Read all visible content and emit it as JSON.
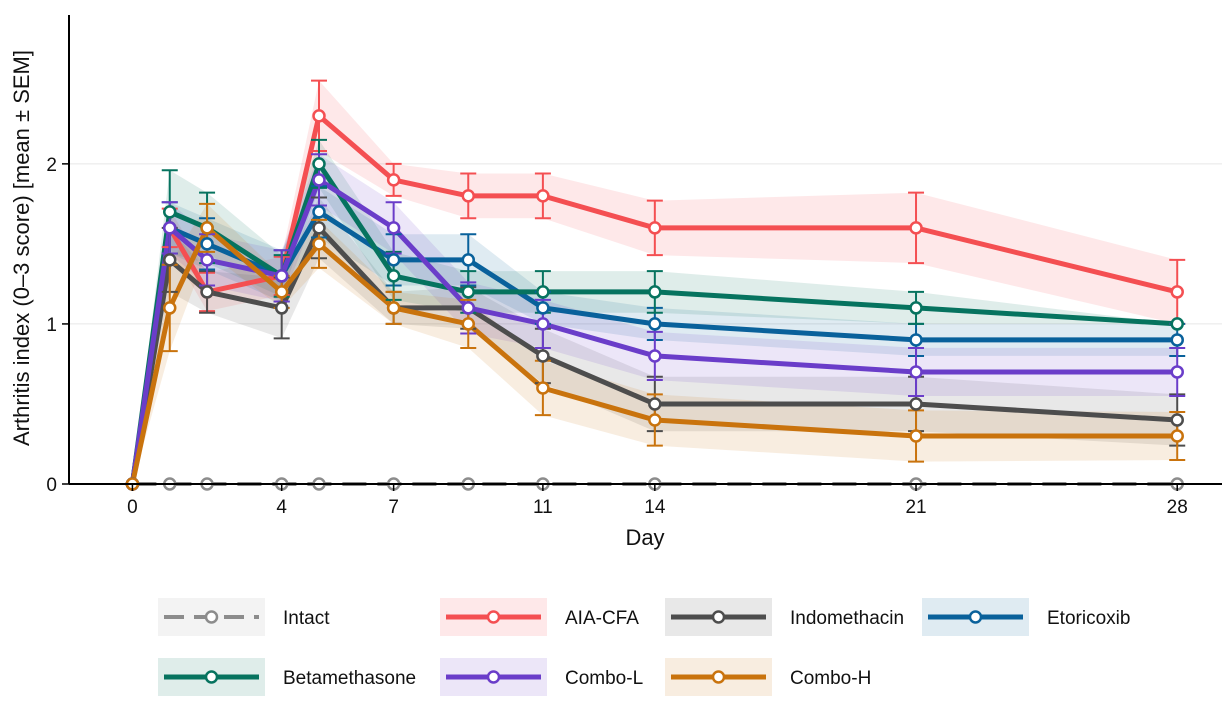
{
  "chart_data": {
    "type": "line",
    "xlabel": "Day",
    "ylabel": "Arthritis index (0–3 score) [mean ± SEM]",
    "xlim": [
      -1.7,
      29.2
    ],
    "ylim": [
      0,
      2.93
    ],
    "x_ticks": [
      0,
      4,
      7,
      11,
      14,
      21,
      28
    ],
    "y_ticks": [
      0,
      1,
      2
    ],
    "grid": "horizontal major lines",
    "legend_position": "bottom",
    "x": [
      0,
      1,
      2,
      4,
      5,
      7,
      9,
      11,
      14,
      21,
      28
    ],
    "series": [
      {
        "name": "Intact",
        "color": "#8c8c8c",
        "style": "dashed",
        "values": [
          0,
          0,
          0,
          0,
          0,
          0,
          0,
          0,
          0,
          0,
          0
        ],
        "sem": [
          0,
          0,
          0,
          0,
          0,
          0,
          0,
          0,
          0,
          0,
          0
        ]
      },
      {
        "name": "AIA-CFA",
        "color": "#f44f52",
        "style": "solid",
        "values": [
          0,
          1.6,
          1.2,
          1.3,
          2.3,
          1.9,
          1.8,
          1.8,
          1.6,
          1.6,
          1.2
        ],
        "sem": [
          0,
          0.12,
          0.12,
          0.12,
          0.22,
          0.1,
          0.14,
          0.14,
          0.17,
          0.22,
          0.2
        ]
      },
      {
        "name": "Indomethacin",
        "color": "#4d4d4d",
        "style": "solid",
        "values": [
          0,
          1.4,
          1.2,
          1.1,
          1.6,
          1.1,
          1.1,
          0.8,
          0.5,
          0.5,
          0.4
        ],
        "sem": [
          0,
          0.2,
          0.13,
          0.19,
          0.19,
          0.1,
          0.13,
          0.17,
          0.17,
          0.17,
          0.16
        ]
      },
      {
        "name": "Etoricoxib",
        "color": "#09619b",
        "style": "solid",
        "values": [
          0,
          1.6,
          1.5,
          1.3,
          1.7,
          1.4,
          1.4,
          1.1,
          1.0,
          0.9,
          0.9
        ],
        "sem": [
          0,
          0.16,
          0.16,
          0.16,
          0.16,
          0.16,
          0.16,
          0.1,
          0.1,
          0.1,
          0.1
        ]
      },
      {
        "name": "Betamethasone",
        "color": "#06735f",
        "style": "solid",
        "values": [
          0,
          1.7,
          1.6,
          1.3,
          2.0,
          1.3,
          1.2,
          1.2,
          1.2,
          1.1,
          1.0
        ],
        "sem": [
          0,
          0.26,
          0.22,
          0.13,
          0.15,
          0.15,
          0.13,
          0.13,
          0.13,
          0.1,
          0.0
        ]
      },
      {
        "name": "Combo-L",
        "color": "#6a3dc9",
        "style": "solid",
        "values": [
          0,
          1.6,
          1.4,
          1.3,
          1.9,
          1.6,
          1.1,
          1.0,
          0.8,
          0.7,
          0.7
        ],
        "sem": [
          0,
          0.16,
          0.16,
          0.16,
          0.16,
          0.16,
          0.16,
          0.15,
          0.15,
          0.15,
          0.15
        ]
      },
      {
        "name": "Combo-H",
        "color": "#c9730d",
        "style": "solid",
        "values": [
          0,
          1.1,
          1.6,
          1.2,
          1.5,
          1.1,
          1.0,
          0.6,
          0.4,
          0.3,
          0.3
        ],
        "sem": [
          0,
          0.27,
          0.15,
          0.1,
          0.15,
          0.1,
          0.15,
          0.17,
          0.16,
          0.16,
          0.15
        ]
      }
    ]
  }
}
